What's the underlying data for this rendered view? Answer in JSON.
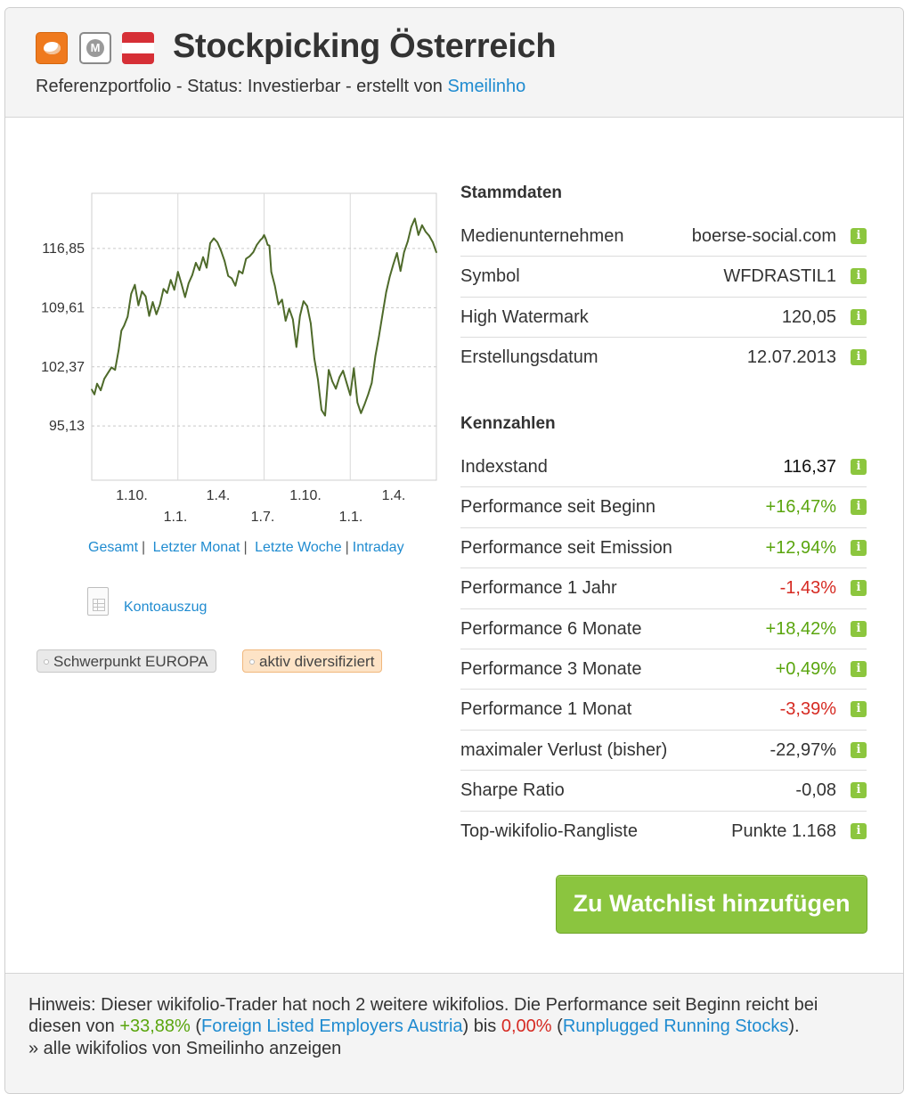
{
  "header": {
    "title": "Stockpicking Österreich",
    "subtitle_prefix": "Referenzportfolio - Status: Investierbar - erstellt von",
    "author": "Smeilinho"
  },
  "icons": [
    "orange-badge-icon",
    "m-badge-icon",
    "austria-flag-icon",
    "info-icon",
    "document-icon"
  ],
  "chart": {
    "links": [
      "Gesamt",
      "Letzter Monat",
      "Letzte Woche",
      "Intraday"
    ],
    "kontoauszug": "Kontoauszug"
  },
  "chart_data": {
    "type": "line",
    "title": "",
    "xlabel": "",
    "ylabel": "",
    "yticks": [
      "116,85",
      "109,61",
      "102,37",
      "95,13"
    ],
    "ytick_values": [
      116.85,
      109.61,
      102.37,
      95.13
    ],
    "ylim": [
      88.5,
      123.6
    ],
    "xtick_labels_top": [
      "1.10.",
      "1.4.",
      "1.10.",
      "1.4."
    ],
    "xtick_labels_bottom": [
      "1.1.",
      "1.7.",
      "1.1."
    ],
    "grid": true,
    "line_color": "#4e6a2a",
    "series": [
      {
        "x": [
          0,
          3,
          6,
          10,
          14,
          18,
          22,
          26,
          30,
          33,
          36,
          40,
          44,
          48,
          52,
          56,
          60,
          64,
          68,
          72,
          76,
          80,
          84,
          88,
          92,
          96,
          100,
          104,
          108,
          112,
          116,
          120,
          124,
          128,
          132,
          136,
          140,
          144,
          148,
          152,
          156,
          160,
          164,
          168,
          172,
          176,
          180,
          184,
          188,
          190,
          192,
          194,
          196,
          198,
          200,
          204,
          208,
          212,
          216,
          220,
          224,
          228,
          232,
          236,
          240,
          244,
          248,
          252,
          256,
          260,
          264,
          268,
          272,
          276,
          280,
          284,
          288,
          292,
          296,
          300,
          304,
          308,
          312,
          316,
          320,
          324,
          328,
          332,
          336,
          340,
          344,
          348,
          352,
          356,
          360,
          364,
          368,
          372,
          376,
          380,
          384
        ],
        "y": [
          99.6,
          99.0,
          100.3,
          99.5,
          100.9,
          101.6,
          102.3,
          102.0,
          104.4,
          106.8,
          107.4,
          108.5,
          111.3,
          112.4,
          109.9,
          111.6,
          111.0,
          108.6,
          110.3,
          108.8,
          110.0,
          111.9,
          111.4,
          113.0,
          111.8,
          114.0,
          112.5,
          110.9,
          112.6,
          113.6,
          115.1,
          114.2,
          115.8,
          114.5,
          117.5,
          118.1,
          117.6,
          116.6,
          115.3,
          113.5,
          113.2,
          112.3,
          114.1,
          113.8,
          115.6,
          115.9,
          116.4,
          117.3,
          117.9,
          118.1,
          118.5,
          118.0,
          117.3,
          117.2,
          114.0,
          112.3,
          110.0,
          110.6,
          108.0,
          109.5,
          108.2,
          104.8,
          108.6,
          110.4,
          109.8,
          107.7,
          103.4,
          100.8,
          97.1,
          96.4,
          102.0,
          100.6,
          99.7,
          101.1,
          101.9,
          100.4,
          98.9,
          102.2,
          98.0,
          96.7,
          97.8,
          99.0,
          100.4,
          103.7,
          106.1,
          108.8,
          111.5,
          113.4,
          114.9,
          116.3,
          114.1,
          116.4,
          117.7,
          119.5,
          120.5,
          118.5,
          119.7,
          118.9,
          118.4,
          117.6,
          116.37
        ]
      }
    ]
  },
  "tags": [
    "Schwerpunkt EUROPA",
    "aktiv diversifiziert"
  ],
  "stammdaten": {
    "heading": "Stammdaten",
    "rows": [
      {
        "label": "Medienunternehmen",
        "value": "boerse-social.com"
      },
      {
        "label": "Symbol",
        "value": "WFDRASTIL1"
      },
      {
        "label": "High Watermark",
        "value": "120,05"
      },
      {
        "label": "Erstellungsdatum",
        "value": "12.07.2013"
      }
    ]
  },
  "kennzahlen": {
    "heading": "Kennzahlen",
    "rows": [
      {
        "label": "Indexstand",
        "value": "116,37",
        "tone": "dark"
      },
      {
        "label": "Performance seit Beginn",
        "value": "+16,47%",
        "tone": "pos"
      },
      {
        "label": "Performance seit Emission",
        "value": "+12,94%",
        "tone": "pos"
      },
      {
        "label": "Performance 1 Jahr",
        "value": "-1,43%",
        "tone": "neg"
      },
      {
        "label": "Performance 6 Monate",
        "value": "+18,42%",
        "tone": "pos"
      },
      {
        "label": "Performance 3 Monate",
        "value": "+0,49%",
        "tone": "pos"
      },
      {
        "label": "Performance 1 Monat",
        "value": "-3,39%",
        "tone": "neg"
      },
      {
        "label": "maximaler Verlust (bisher)",
        "value": "-22,97%",
        "tone": "plain"
      },
      {
        "label": "Sharpe Ratio",
        "value": "-0,08",
        "tone": "plain"
      },
      {
        "label": "Top-wikifolio-Rangliste",
        "value": "Punkte 1.168",
        "tone": "plain"
      }
    ]
  },
  "actions": {
    "watchlist_button": "Zu Watchlist hinzufügen"
  },
  "footer": {
    "line1": "Hinweis: Dieser wikifolio-Trader hat noch 2 weitere wikifolios. Die Performance seit Beginn reicht bei",
    "line2_prefix": "diesen von",
    "best_value": "+33,88%",
    "best_name": "Foreign Listed Employers Austria",
    "line2_middle": "bis",
    "worst_value": "0,00%",
    "worst_name": "Runplugged Running Stocks",
    "all_link": "» alle wikifolios von Smeilinho anzeigen"
  },
  "colors": {
    "accent_link": "#1f8bd0",
    "positive": "#5aa50e",
    "negative": "#d62a22",
    "button_green": "#8bc53f",
    "info_green": "#8cc63e",
    "flag_red": "#d62f36",
    "badge_orange": "#ef7a1e"
  }
}
